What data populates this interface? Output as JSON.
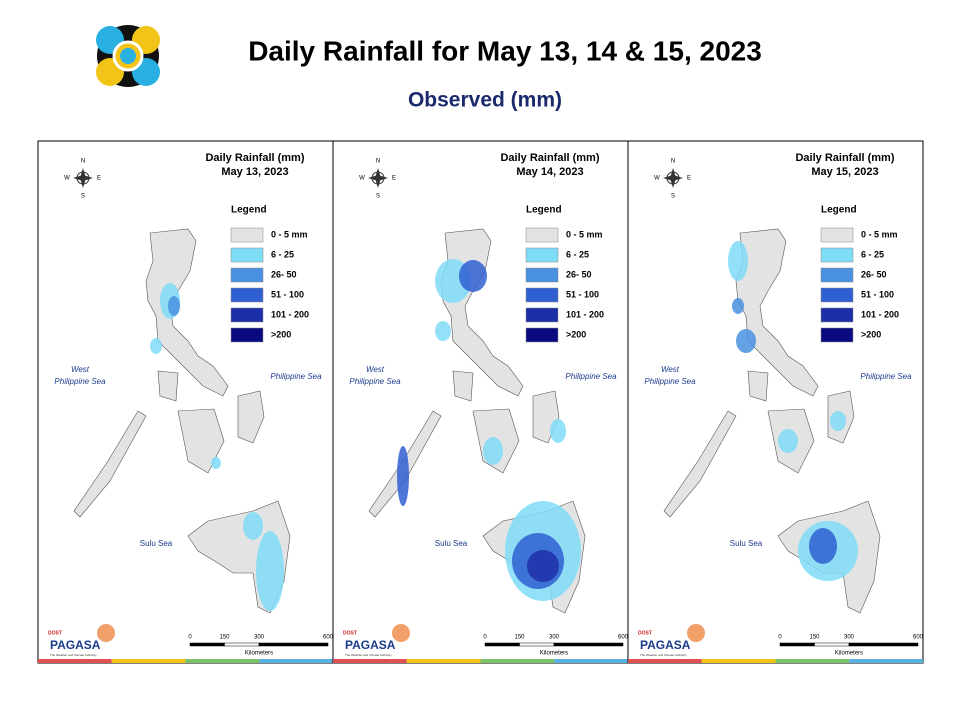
{
  "header": {
    "title": "Daily Rainfall for May 13, 14 & 15, 2023",
    "subtitle": "Observed (mm)"
  },
  "map_common": {
    "legend_title": "Legend",
    "legend": [
      {
        "label": "0 - 5 mm",
        "color": "#e3e3e3"
      },
      {
        "label": "6 - 25",
        "color": "#7fdcf7"
      },
      {
        "label": "26- 50",
        "color": "#4a90e0"
      },
      {
        "label": "51 - 100",
        "color": "#2f5fd0"
      },
      {
        "label": "101 - 200",
        "color": "#1d2fa8"
      },
      {
        "label": ">200",
        "color": "#0a0a80"
      }
    ],
    "seas": {
      "west_line1": "West",
      "west_line2": "Philippine Sea",
      "east": "Philippine Sea",
      "south": "Sulu Sea"
    },
    "compass": {
      "n": "N",
      "e": "E",
      "w": "W",
      "s": "S"
    },
    "scale": {
      "ticks": [
        0,
        150,
        300,
        600
      ],
      "lim": [
        0,
        600
      ],
      "unit": "Kilometers"
    },
    "agency": {
      "top": "DOST",
      "name": "PAGASA",
      "tagline": "The Weather and Climate Authority"
    }
  },
  "panels": [
    {
      "title": "Daily Rainfall (mm)",
      "date": "May 13, 2023"
    },
    {
      "title": "Daily Rainfall (mm)",
      "date": "May 14, 2023"
    },
    {
      "title": "Daily Rainfall (mm)",
      "date": "May 15, 2023"
    }
  ]
}
